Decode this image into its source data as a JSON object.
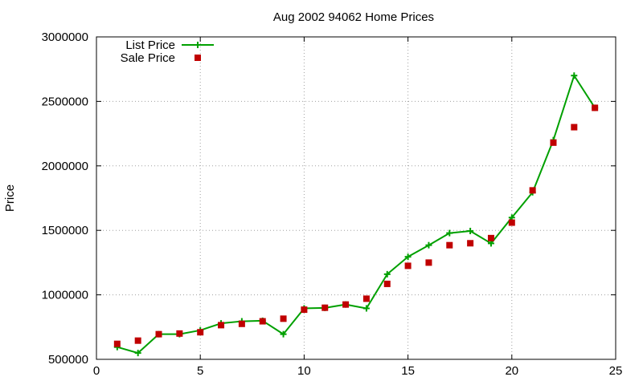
{
  "chart_data": {
    "type": "line",
    "title": "Aug 2002 94062 Home Prices",
    "xlabel": "",
    "ylabel": "Price",
    "xlim": [
      0,
      25
    ],
    "ylim": [
      500000,
      3000000
    ],
    "xticks": [
      0,
      5,
      10,
      15,
      20,
      25
    ],
    "yticks": [
      500000,
      1000000,
      1500000,
      2000000,
      2500000,
      3000000
    ],
    "xtick_labels": [
      "0",
      "5",
      "10",
      "15",
      "20",
      "25"
    ],
    "ytick_labels": [
      "500000",
      "1000000",
      "1500000",
      "2000000",
      "2500000",
      "3000000"
    ],
    "grid": true,
    "legend_position": "top-left",
    "series": [
      {
        "name": "List Price",
        "style": "line+cross",
        "color": "#00a000",
        "x": [
          1,
          2,
          3,
          4,
          5,
          6,
          7,
          8,
          9,
          10,
          11,
          12,
          13,
          14,
          15,
          16,
          17,
          18,
          19,
          20,
          21,
          22,
          23,
          24
        ],
        "y": [
          595000,
          549000,
          695000,
          695000,
          725000,
          779000,
          795000,
          799000,
          695000,
          895000,
          899000,
          925000,
          895000,
          1160000,
          1295000,
          1385000,
          1479000,
          1495000,
          1399000,
          1599000,
          1795000,
          2200000,
          2700000,
          2450000
        ]
      },
      {
        "name": "Sale Price",
        "style": "square-points",
        "color": "#c00000",
        "x": [
          1,
          2,
          3,
          4,
          5,
          6,
          7,
          8,
          9,
          10,
          11,
          12,
          13,
          14,
          15,
          16,
          17,
          18,
          19,
          20,
          21,
          22,
          23,
          24
        ],
        "y": [
          620000,
          645000,
          695000,
          700000,
          710000,
          765000,
          775000,
          795000,
          815000,
          885000,
          900000,
          925000,
          970000,
          1085000,
          1225000,
          1250000,
          1385000,
          1400000,
          1440000,
          1560000,
          1810000,
          2180000,
          2300000,
          2450000
        ]
      }
    ]
  }
}
